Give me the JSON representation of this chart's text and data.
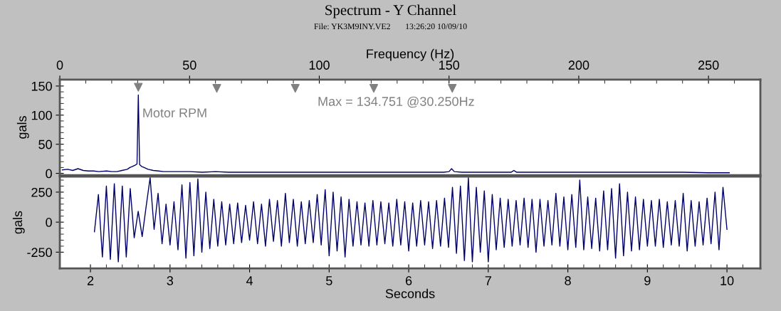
{
  "chart_data": [
    {
      "type": "line",
      "title": "Spectrum - Y Channel",
      "subtitle": "File: YK3M9INY.VE2       13:26:20 10/09/10",
      "xlabel": "Frequency (Hz)",
      "ylabel": "gals",
      "xlim": [
        0,
        270
      ],
      "xticks": [
        0,
        {
          "value": 10,
          "label": null
        },
        {
          "value": 20,
          "label": null
        },
        {
          "value": 30,
          "label": null
        },
        {
          "value": 40,
          "label": null
        },
        50,
        {
          "value": 60,
          "label": null
        },
        {
          "value": 70,
          "label": null
        },
        {
          "value": 80,
          "label": null
        },
        {
          "value": 90,
          "label": null
        },
        100,
        {
          "value": 110,
          "label": null
        },
        {
          "value": 120,
          "label": null
        },
        {
          "value": 130,
          "label": null
        },
        {
          "value": 140,
          "label": null
        },
        150,
        {
          "value": 160,
          "label": null
        },
        {
          "value": 170,
          "label": null
        },
        {
          "value": 180,
          "label": null
        },
        {
          "value": 190,
          "label": null
        },
        200,
        {
          "value": 210,
          "label": null
        },
        {
          "value": 220,
          "label": null
        },
        {
          "value": 230,
          "label": null
        },
        {
          "value": 240,
          "label": null
        },
        250,
        {
          "value": 260,
          "label": null
        }
      ],
      "ylim": [
        -3,
        161
      ],
      "yticks": [
        0,
        {
          "value": 10,
          "label": null
        },
        {
          "value": 20,
          "label": null
        },
        {
          "value": 30,
          "label": null
        },
        {
          "value": 40,
          "label": null
        },
        50,
        {
          "value": 60,
          "label": null
        },
        {
          "value": 70,
          "label": null
        },
        {
          "value": 80,
          "label": null
        },
        {
          "value": 90,
          "label": null
        },
        100,
        {
          "value": 110,
          "label": null
        },
        {
          "value": 120,
          "label": null
        },
        {
          "value": 130,
          "label": null
        },
        {
          "value": 140,
          "label": null
        },
        150
      ],
      "series": [
        {
          "type": "line",
          "color": "#000066",
          "x": [
            1,
            3,
            5,
            7,
            9,
            11,
            13,
            15,
            18,
            20,
            22,
            24,
            26,
            27,
            28,
            29,
            29.75,
            30.25,
            30.75,
            31.5,
            32.5,
            34,
            36,
            38,
            40,
            45,
            50,
            55,
            60,
            65,
            70,
            80,
            90,
            100,
            110,
            120,
            130,
            140,
            148,
            150,
            151,
            152,
            155,
            160,
            170,
            174,
            175,
            176,
            180,
            190,
            200,
            210,
            220,
            230,
            240,
            250,
            258
          ],
          "values": [
            6,
            7,
            5,
            8,
            5,
            4,
            4,
            3,
            4,
            3,
            3,
            5,
            7,
            10,
            12,
            14,
            16,
            134.751,
            15,
            12,
            10,
            7,
            5,
            4,
            3,
            3,
            3,
            2,
            3,
            2,
            2,
            2,
            2,
            2,
            2,
            2,
            2,
            2,
            2,
            3,
            8,
            3,
            2,
            2,
            2,
            2,
            5,
            2,
            2,
            2,
            2,
            2,
            2,
            2,
            2,
            1,
            1
          ]
        },
        {
          "type": "scatter",
          "color": "#808080",
          "marker": "triangle",
          "x": [
            30.25,
            60.5,
            90.75,
            121,
            151.25
          ],
          "values": [
            148,
            146,
            146,
            146,
            146
          ]
        }
      ],
      "annotations": [
        {
          "text": "Motor RPM",
          "x": 30.25,
          "y": 102
        },
        "Max = 134.751 @30.250Hz"
      ],
      "grid": false
    },
    {
      "type": "line",
      "xlabel": "Seconds",
      "ylabel": "gals",
      "xlim": [
        1.615,
        10.42
      ],
      "xticks": [
        2,
        {
          "value": 2.2,
          "label": null
        },
        {
          "value": 2.4,
          "label": null
        },
        {
          "value": 2.6,
          "label": null
        },
        {
          "value": 2.8,
          "label": null
        },
        3,
        {
          "value": 3.2,
          "label": null
        },
        {
          "value": 3.4,
          "label": null
        },
        {
          "value": 3.6,
          "label": null
        },
        {
          "value": 3.8,
          "label": null
        },
        4,
        {
          "value": 4.2,
          "label": null
        },
        {
          "value": 4.4,
          "label": null
        },
        {
          "value": 4.6,
          "label": null
        },
        {
          "value": 4.8,
          "label": null
        },
        5,
        {
          "value": 5.2,
          "label": null
        },
        {
          "value": 5.4,
          "label": null
        },
        {
          "value": 5.6,
          "label": null
        },
        {
          "value": 5.8,
          "label": null
        },
        6,
        {
          "value": 6.2,
          "label": null
        },
        {
          "value": 6.4,
          "label": null
        },
        {
          "value": 6.6,
          "label": null
        },
        {
          "value": 6.8,
          "label": null
        },
        7,
        {
          "value": 7.2,
          "label": null
        },
        {
          "value": 7.4,
          "label": null
        },
        {
          "value": 7.6,
          "label": null
        },
        {
          "value": 7.8,
          "label": null
        },
        8,
        {
          "value": 8.2,
          "label": null
        },
        {
          "value": 8.4,
          "label": null
        },
        {
          "value": 8.6,
          "label": null
        },
        {
          "value": 8.8,
          "label": null
        },
        9,
        {
          "value": 9.2,
          "label": null
        },
        {
          "value": 9.4,
          "label": null
        },
        {
          "value": 9.6,
          "label": null
        },
        {
          "value": 9.8,
          "label": null
        },
        10,
        {
          "value": 10.2,
          "label": null
        }
      ],
      "ylim": [
        -385,
        380
      ],
      "yticks": [
        -250,
        {
          "value": -200,
          "label": null
        },
        {
          "value": -150,
          "label": null
        },
        {
          "value": -100,
          "label": null
        },
        {
          "value": -50,
          "label": null
        },
        0,
        {
          "value": 50,
          "label": null
        },
        {
          "value": 100,
          "label": null
        },
        {
          "value": 150,
          "label": null
        },
        {
          "value": 200,
          "label": null
        },
        250,
        {
          "value": 300,
          "label": null
        },
        {
          "value": 350,
          "label": null
        }
      ],
      "series": [
        {
          "type": "line",
          "color": "#000066",
          "x": [
            2.05,
            2.1,
            2.15,
            2.2,
            2.25,
            2.3,
            2.35,
            2.4,
            2.45,
            2.5,
            2.55,
            2.6,
            2.65,
            2.7,
            2.75,
            2.8,
            2.85,
            2.9,
            2.95,
            3.0,
            3.05,
            3.1,
            3.15,
            3.2,
            3.25,
            3.3,
            3.35,
            3.4,
            3.45,
            3.5,
            3.55,
            3.6,
            3.65,
            3.7,
            3.75,
            3.8,
            3.85,
            3.9,
            3.95,
            4.0,
            4.05,
            4.1,
            4.15,
            4.2,
            4.25,
            4.3,
            4.35,
            4.4,
            4.45,
            4.5,
            4.55,
            4.6,
            4.65,
            4.7,
            4.75,
            4.8,
            4.85,
            4.9,
            4.95,
            5.0,
            5.05,
            5.1,
            5.15,
            5.2,
            5.25,
            5.3,
            5.35,
            5.4,
            5.45,
            5.5,
            5.55,
            5.6,
            5.65,
            5.7,
            5.75,
            5.8,
            5.85,
            5.9,
            5.95,
            6.0,
            6.05,
            6.1,
            6.15,
            6.2,
            6.25,
            6.3,
            6.35,
            6.4,
            6.45,
            6.5,
            6.55,
            6.6,
            6.65,
            6.7,
            6.75,
            6.8,
            6.85,
            6.9,
            6.95,
            7.0,
            7.05,
            7.1,
            7.15,
            7.2,
            7.25,
            7.3,
            7.35,
            7.4,
            7.45,
            7.5,
            7.55,
            7.6,
            7.65,
            7.7,
            7.75,
            7.8,
            7.85,
            7.9,
            7.95,
            8.0,
            8.05,
            8.1,
            8.15,
            8.2,
            8.25,
            8.3,
            8.35,
            8.4,
            8.45,
            8.5,
            8.55,
            8.6,
            8.65,
            8.7,
            8.75,
            8.8,
            8.85,
            8.9,
            8.95,
            9.0,
            9.05,
            9.1,
            9.15,
            9.2,
            9.25,
            9.3,
            9.35,
            9.4,
            9.45,
            9.5,
            9.55,
            9.6,
            9.65,
            9.7,
            9.75,
            9.8,
            9.85,
            9.9,
            9.95,
            10.0
          ],
          "values": [
            -80,
            230,
            -290,
            300,
            -310,
            320,
            -330,
            300,
            -290,
            280,
            -130,
            90,
            -120,
            130,
            370,
            -60,
            240,
            -180,
            150,
            -190,
            170,
            -230,
            310,
            -300,
            330,
            -280,
            360,
            -250,
            250,
            -220,
            190,
            -200,
            170,
            -190,
            150,
            -180,
            160,
            -170,
            140,
            -150,
            170,
            -180,
            150,
            -200,
            190,
            -160,
            180,
            -200,
            240,
            -170,
            190,
            -200,
            170,
            -180,
            180,
            -170,
            230,
            -190,
            270,
            -280,
            250,
            -240,
            210,
            -290,
            190,
            -200,
            170,
            -190,
            160,
            -200,
            180,
            -190,
            170,
            -180,
            160,
            -200,
            190,
            -190,
            170,
            -240,
            160,
            -200,
            180,
            -190,
            170,
            -220,
            180,
            -200,
            200,
            -210,
            290,
            -260,
            300,
            -320,
            370,
            -330,
            290,
            -250,
            260,
            -330,
            230,
            -230,
            200,
            -210,
            190,
            -200,
            180,
            -190,
            200,
            -210,
            190,
            -250,
            190,
            -200,
            180,
            -190,
            240,
            -200,
            210,
            -230,
            230,
            -210,
            350,
            -230,
            210,
            -220,
            200,
            -240,
            260,
            -230,
            280,
            -300,
            320,
            -280,
            250,
            -240,
            210,
            -230,
            190,
            -200,
            180,
            -200,
            190,
            -210,
            170,
            -190,
            180,
            -200,
            240,
            -240,
            180,
            -200,
            170,
            -190,
            200,
            -180,
            250,
            -230,
            290,
            -60
          ]
        }
      ],
      "grid": false
    }
  ]
}
